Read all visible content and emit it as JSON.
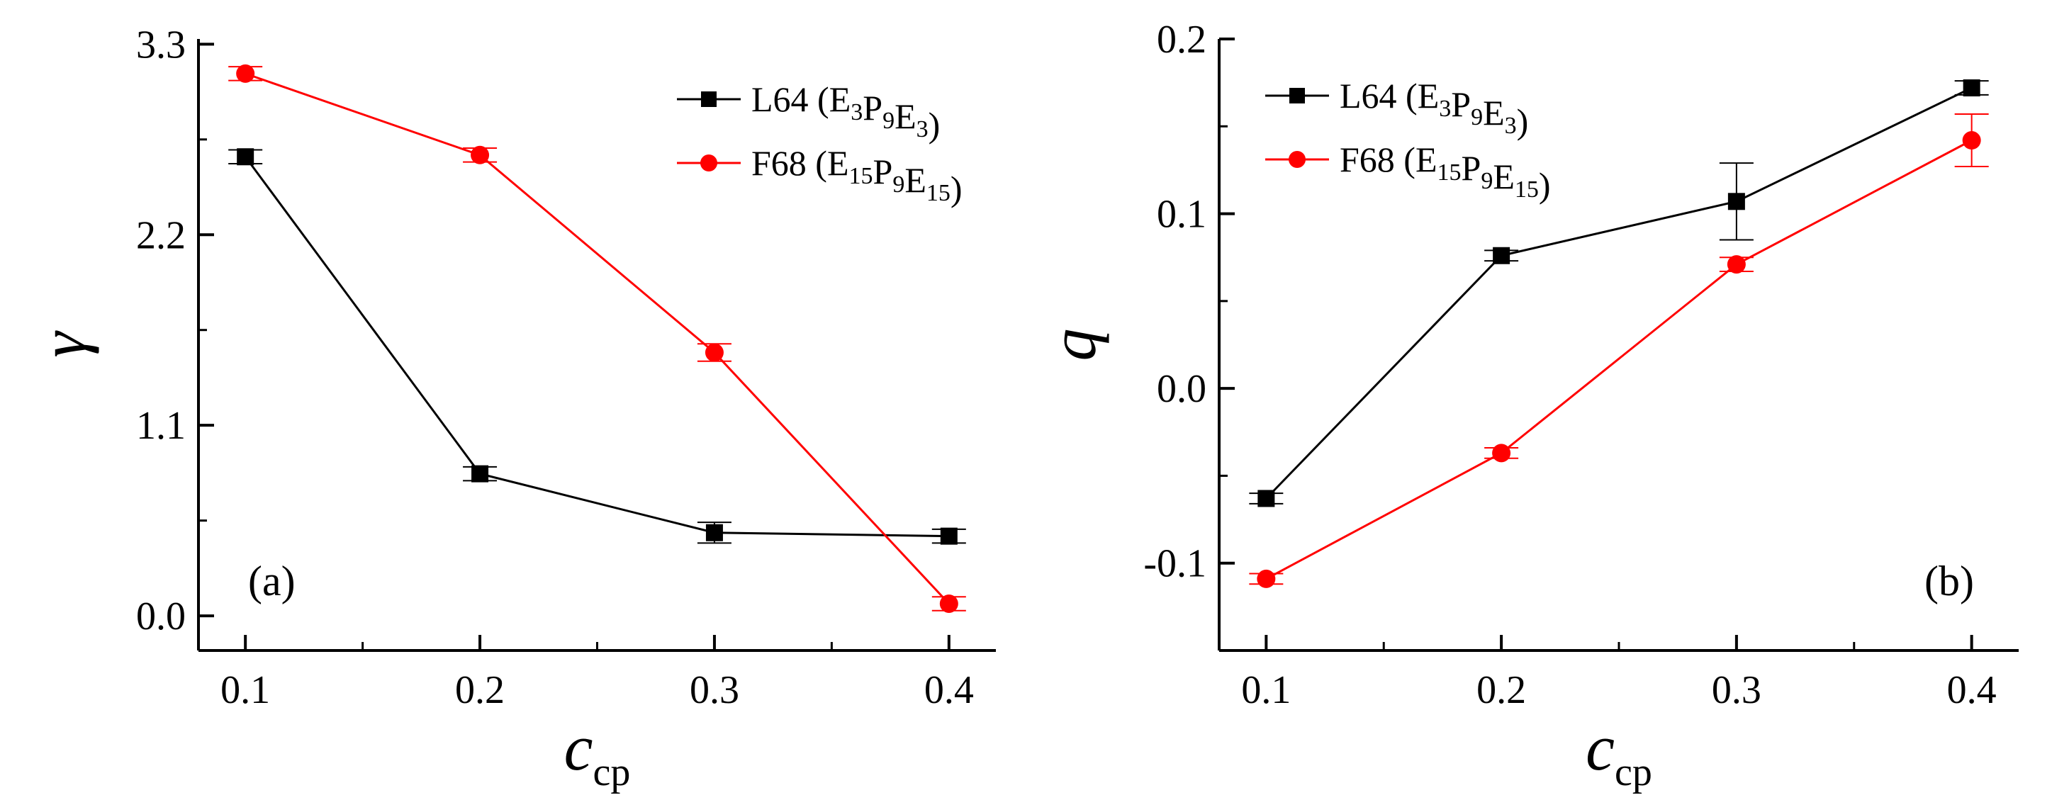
{
  "colors": {
    "L64": "#000000",
    "F68": "#ff0000",
    "axis": "#000000",
    "background": "#ffffff"
  },
  "legend": {
    "position": "top-right",
    "entries": [
      {
        "prefix": "L64 (",
        "parts": [
          [
            "E",
            "3"
          ],
          [
            "P",
            "9"
          ],
          [
            "E",
            "3"
          ]
        ],
        "suffix": ")"
      },
      {
        "prefix": "F68 (",
        "parts": [
          [
            "E",
            "15"
          ],
          [
            "P",
            "9"
          ],
          [
            "E",
            "15"
          ]
        ],
        "suffix": ")"
      }
    ]
  },
  "chart_data": [
    {
      "type": "line",
      "panel_label": "(a)",
      "xlabel": {
        "main": "c",
        "sub": "cp"
      },
      "ylabel": "γ",
      "x": [
        0.1,
        0.2,
        0.3,
        0.4
      ],
      "xticks": [
        "0.1",
        "0.2",
        "0.3",
        "0.4"
      ],
      "xlim": [
        0.08,
        0.42
      ],
      "ylim": [
        -0.2,
        3.33
      ],
      "yticks": [
        0.0,
        1.1,
        2.2,
        3.3
      ],
      "ytick_labels": [
        "0.0",
        "1.1",
        "2.2",
        "3.3"
      ],
      "grid": false,
      "series": [
        {
          "name": "L64",
          "marker": "square",
          "values": [
            2.65,
            0.82,
            0.48,
            0.46
          ],
          "errors": [
            0.04,
            0.04,
            0.06,
            0.04
          ]
        },
        {
          "name": "F68",
          "marker": "circle",
          "values": [
            3.13,
            2.66,
            1.52,
            0.07
          ],
          "errors": [
            0.04,
            0.04,
            0.05,
            0.04
          ]
        }
      ]
    },
    {
      "type": "line",
      "panel_label": "(b)",
      "xlabel": {
        "main": "c",
        "sub": "cp"
      },
      "ylabel": "q",
      "x": [
        0.1,
        0.2,
        0.3,
        0.4
      ],
      "xticks": [
        "0.1",
        "0.2",
        "0.3",
        "0.4"
      ],
      "xlim": [
        0.08,
        0.42
      ],
      "ylim": [
        -0.15,
        0.2
      ],
      "yticks": [
        -0.1,
        0.0,
        0.1,
        0.2
      ],
      "ytick_labels": [
        "-0.1",
        "0.0",
        "0.1",
        "0.2"
      ],
      "grid": false,
      "series": [
        {
          "name": "L64",
          "marker": "square",
          "values": [
            -0.063,
            0.076,
            0.107,
            0.172
          ],
          "errors": [
            0.003,
            0.003,
            0.022,
            0.004
          ]
        },
        {
          "name": "F68",
          "marker": "circle",
          "values": [
            -0.109,
            -0.037,
            0.071,
            0.142
          ],
          "errors": [
            0.003,
            0.003,
            0.004,
            0.015
          ]
        }
      ]
    }
  ]
}
